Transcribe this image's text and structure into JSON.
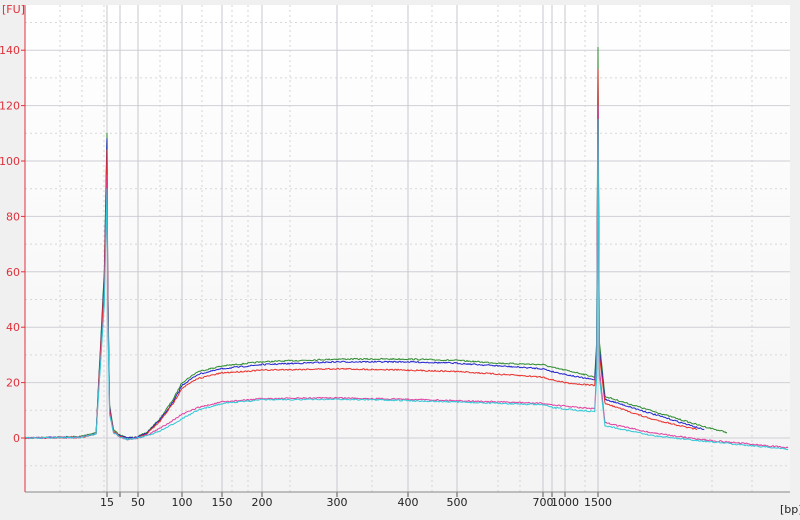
{
  "chart_data": {
    "type": "line",
    "title": "",
    "xlabel": "[bp]",
    "ylabel": "[FU]",
    "ylim": [
      -20,
      156
    ],
    "yticks": [
      0,
      20,
      40,
      60,
      80,
      100,
      120,
      140
    ],
    "xticks": [
      {
        "value": 15,
        "label": "15"
      },
      {
        "value": 25,
        "label": ""
      },
      {
        "value": 50,
        "label": "50"
      },
      {
        "value": 100,
        "label": "100"
      },
      {
        "value": 150,
        "label": "150"
      },
      {
        "value": 200,
        "label": "200"
      },
      {
        "value": 300,
        "label": "300"
      },
      {
        "value": 400,
        "label": "400"
      },
      {
        "value": 500,
        "label": "500"
      },
      {
        "value": 700,
        "label": "700"
      },
      {
        "value": 850,
        "label": ""
      },
      {
        "value": 1000,
        "label": "1000"
      },
      {
        "value": 1500,
        "label": "1500"
      }
    ],
    "grid": true,
    "axis_color": "#e0303a",
    "series": [
      {
        "color": "#2e8b2e",
        "points": [
          [
            0,
            0
          ],
          [
            10,
            0.5
          ],
          [
            13,
            2
          ],
          [
            14.5,
            60
          ],
          [
            15,
            110
          ],
          [
            15.5,
            60
          ],
          [
            17,
            12
          ],
          [
            20,
            3
          ],
          [
            25,
            1
          ],
          [
            35,
            0
          ],
          [
            50,
            0.5
          ],
          [
            60,
            2
          ],
          [
            75,
            7
          ],
          [
            90,
            14
          ],
          [
            100,
            20
          ],
          [
            120,
            24
          ],
          [
            150,
            26
          ],
          [
            200,
            27.5
          ],
          [
            300,
            28.5
          ],
          [
            400,
            28.5
          ],
          [
            500,
            28
          ],
          [
            600,
            27
          ],
          [
            700,
            26.5
          ],
          [
            850,
            25.5
          ],
          [
            1000,
            24.5
          ],
          [
            1200,
            23.5
          ],
          [
            1450,
            22
          ],
          [
            1480,
            35
          ],
          [
            1500,
            141
          ],
          [
            1520,
            35
          ],
          [
            1606,
            15
          ],
          [
            2288,
            10
          ],
          [
            3045,
            4.5
          ],
          [
            3455,
            2
          ]
        ]
      },
      {
        "color": "#2222cc",
        "points": [
          [
            0,
            0
          ],
          [
            10,
            0.3
          ],
          [
            13,
            1.5
          ],
          [
            14.5,
            58
          ],
          [
            15,
            108
          ],
          [
            15.5,
            58
          ],
          [
            17,
            11
          ],
          [
            20,
            2.5
          ],
          [
            25,
            0.8
          ],
          [
            35,
            0
          ],
          [
            50,
            0.3
          ],
          [
            60,
            1.8
          ],
          [
            75,
            6.5
          ],
          [
            90,
            13
          ],
          [
            100,
            19
          ],
          [
            120,
            23
          ],
          [
            150,
            25
          ],
          [
            200,
            26.5
          ],
          [
            300,
            27.5
          ],
          [
            400,
            27.5
          ],
          [
            500,
            27
          ],
          [
            600,
            26
          ],
          [
            700,
            25
          ],
          [
            850,
            24
          ],
          [
            1000,
            23
          ],
          [
            1200,
            22
          ],
          [
            1450,
            21
          ],
          [
            1480,
            32
          ],
          [
            1500,
            130
          ],
          [
            1520,
            32
          ],
          [
            1606,
            14
          ],
          [
            2288,
            9
          ],
          [
            3110,
            3
          ]
        ]
      },
      {
        "color": "#e8302a",
        "points": [
          [
            0,
            0
          ],
          [
            10,
            0.2
          ],
          [
            13,
            1.5
          ],
          [
            14.5,
            56
          ],
          [
            15,
            104
          ],
          [
            15.5,
            56
          ],
          [
            17,
            10
          ],
          [
            20,
            2.5
          ],
          [
            25,
            0.5
          ],
          [
            35,
            -0.5
          ],
          [
            50,
            0
          ],
          [
            60,
            1.5
          ],
          [
            75,
            6
          ],
          [
            90,
            12.5
          ],
          [
            100,
            18
          ],
          [
            120,
            21.5
          ],
          [
            150,
            23.5
          ],
          [
            200,
            24.5
          ],
          [
            300,
            25
          ],
          [
            400,
            24.5
          ],
          [
            500,
            24
          ],
          [
            600,
            23
          ],
          [
            700,
            22
          ],
          [
            850,
            21
          ],
          [
            1000,
            20
          ],
          [
            1200,
            19.5
          ],
          [
            1450,
            19
          ],
          [
            1480,
            30
          ],
          [
            1500,
            133
          ],
          [
            1520,
            30
          ],
          [
            1606,
            12.5
          ],
          [
            2288,
            7
          ],
          [
            3000,
            3
          ]
        ]
      },
      {
        "color": "#e040a0",
        "points": [
          [
            0,
            0
          ],
          [
            10,
            0.2
          ],
          [
            13,
            1.5
          ],
          [
            14.5,
            50
          ],
          [
            15,
            95
          ],
          [
            15.5,
            50
          ],
          [
            17,
            9
          ],
          [
            20,
            2
          ],
          [
            25,
            0.3
          ],
          [
            35,
            -0.5
          ],
          [
            50,
            0
          ],
          [
            60,
            1
          ],
          [
            75,
            3.5
          ],
          [
            90,
            6.5
          ],
          [
            100,
            8.5
          ],
          [
            120,
            11
          ],
          [
            150,
            13
          ],
          [
            200,
            14.2
          ],
          [
            300,
            14.5
          ],
          [
            400,
            14
          ],
          [
            500,
            13.5
          ],
          [
            600,
            13
          ],
          [
            700,
            12.5
          ],
          [
            850,
            12
          ],
          [
            1000,
            11.5
          ],
          [
            1200,
            11
          ],
          [
            1450,
            10.5
          ],
          [
            1480,
            25
          ],
          [
            1500,
            120
          ],
          [
            1520,
            25
          ],
          [
            1606,
            5.5
          ],
          [
            2288,
            2
          ],
          [
            3045,
            -0.5
          ],
          [
            4380,
            -3.5
          ]
        ]
      },
      {
        "color": "#30c8d8",
        "points": [
          [
            0,
            0
          ],
          [
            10,
            0.2
          ],
          [
            13,
            1.5
          ],
          [
            14.5,
            48
          ],
          [
            15,
            90
          ],
          [
            15.5,
            48
          ],
          [
            17,
            8.5
          ],
          [
            20,
            2
          ],
          [
            25,
            0.3
          ],
          [
            35,
            -0.5
          ],
          [
            50,
            0
          ],
          [
            60,
            0.8
          ],
          [
            75,
            2.5
          ],
          [
            90,
            5
          ],
          [
            100,
            7
          ],
          [
            120,
            10
          ],
          [
            150,
            12.5
          ],
          [
            200,
            13.8
          ],
          [
            300,
            14
          ],
          [
            400,
            13.5
          ],
          [
            500,
            13
          ],
          [
            600,
            12.5
          ],
          [
            700,
            12
          ],
          [
            850,
            11
          ],
          [
            1000,
            10.5
          ],
          [
            1200,
            10
          ],
          [
            1450,
            9.5
          ],
          [
            1480,
            22
          ],
          [
            1500,
            115
          ],
          [
            1520,
            22
          ],
          [
            1606,
            4.5
          ],
          [
            2288,
            1
          ],
          [
            3045,
            -1
          ],
          [
            4380,
            -4
          ]
        ]
      }
    ]
  }
}
